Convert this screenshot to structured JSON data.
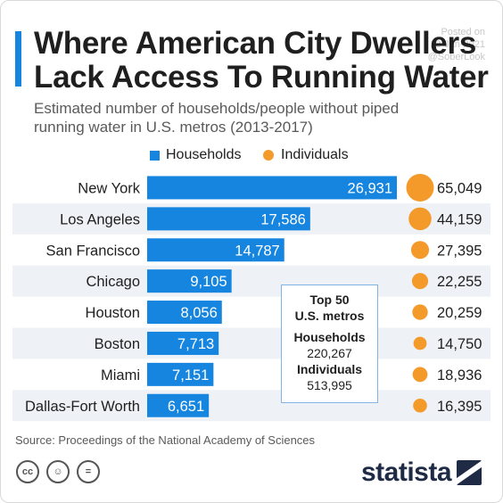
{
  "header": {
    "title_line1": "Where American City Dwellers",
    "title_line2": "Lack Access To Running Water",
    "subtitle": "Estimated number of households/people without piped running water in U.S. metros (2013-2017)",
    "posted_label": "Posted on",
    "posted_date": "13-Jan-2021",
    "posted_user": "@SoberLook"
  },
  "legend": {
    "households": "Households",
    "individuals": "Individuals"
  },
  "summary": {
    "title_line1": "Top 50",
    "title_line2": "U.S. metros",
    "households_label": "Households",
    "households_value": "220,267",
    "individuals_label": "Individuals",
    "individuals_value": "513,995"
  },
  "footer": {
    "source": "Source: Proceedings of the National Academy of Sciences",
    "brand": "statista",
    "cc_icons": [
      "cc-icon",
      "by-attribution-icon",
      "nd-no-derivatives-icon"
    ]
  },
  "colors": {
    "households": "#1685e0",
    "individuals": "#f39a2b",
    "row_stripe": "#eef1f5"
  },
  "chart_data": {
    "type": "bar",
    "orientation": "horizontal",
    "categories": [
      "New York",
      "Los Angeles",
      "San Francisco",
      "Chicago",
      "Houston",
      "Boston",
      "Miami",
      "Dallas-Fort Worth"
    ],
    "series": [
      {
        "name": "Households",
        "values": [
          26931,
          17586,
          14787,
          9105,
          8056,
          7713,
          7151,
          6651
        ],
        "labels": [
          "26,931",
          "17,586",
          "14,787",
          "9,105",
          "8,056",
          "7,713",
          "7,151",
          "6,651"
        ]
      },
      {
        "name": "Individuals",
        "values": [
          65049,
          44159,
          27395,
          22255,
          20259,
          14750,
          18936,
          16395
        ],
        "labels": [
          "65,049",
          "44,159",
          "27,395",
          "22,255",
          "20,259",
          "14,750",
          "18,936",
          "16,395"
        ]
      }
    ],
    "legend_position": "top",
    "grid": false
  }
}
